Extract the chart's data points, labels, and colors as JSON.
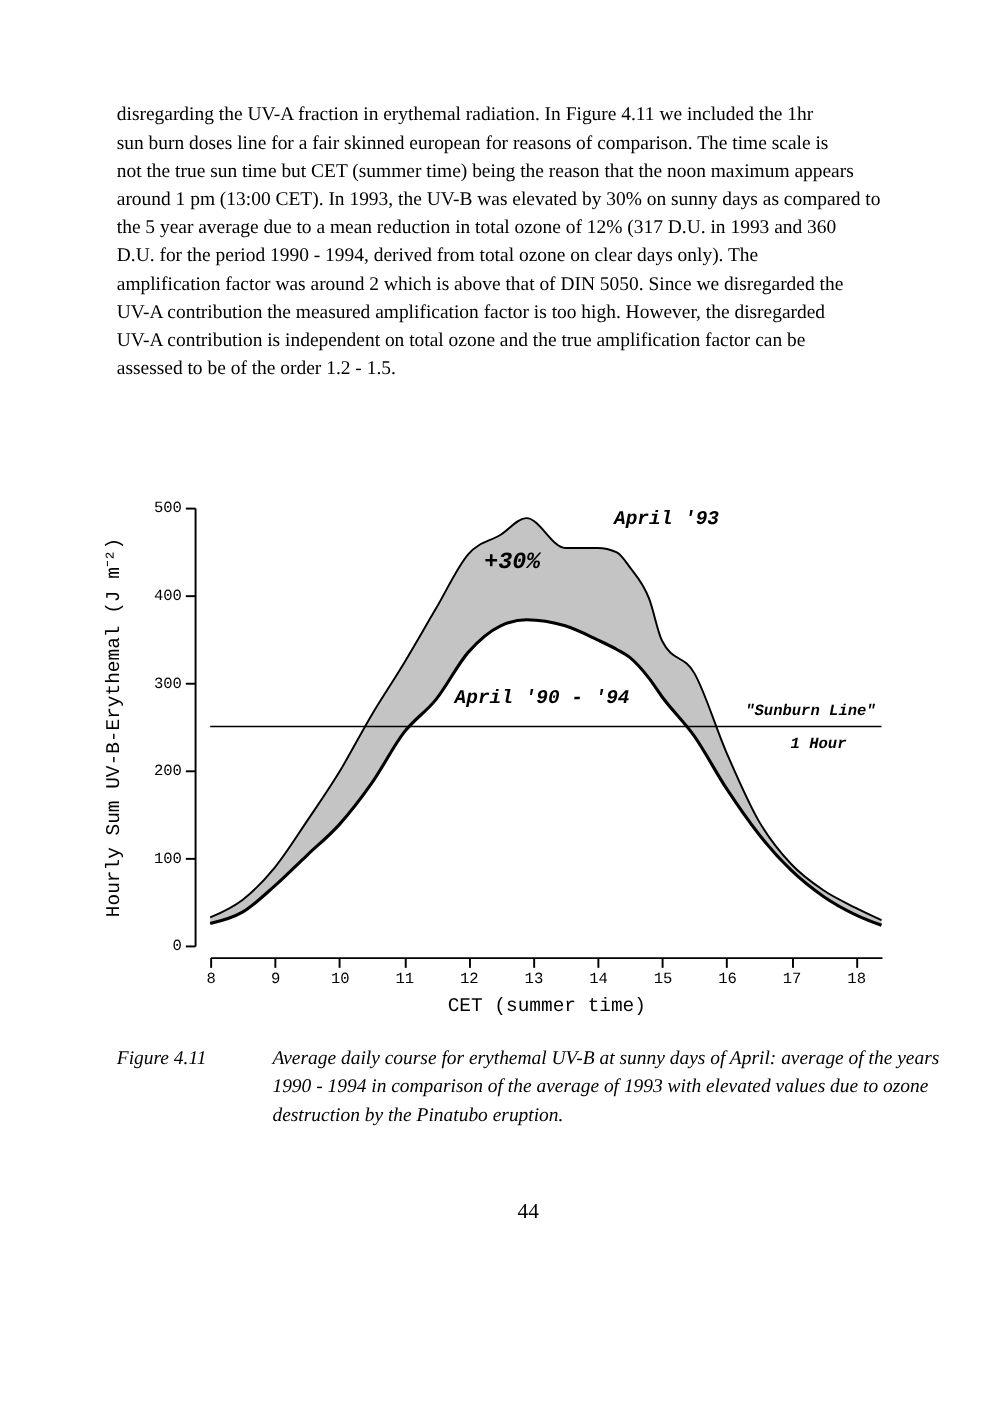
{
  "chart_data": {
    "type": "line",
    "xlabel": "CET (summer time)",
    "ylabel": "Hourly Sum UV-B-Erythemal (J m⁻²)",
    "x": [
      8,
      8.5,
      9,
      9.5,
      10,
      10.5,
      11,
      11.5,
      12,
      12.5,
      12.9,
      13.5,
      14,
      14.3,
      14.5,
      14.8,
      15,
      15.5,
      16,
      16.5,
      17,
      17.5,
      18,
      18.4
    ],
    "series": [
      {
        "name": "April '93",
        "color": "#000000",
        "values": [
          32,
          52,
          89,
          142,
          198,
          263,
          322,
          385,
          447,
          469,
          488,
          454,
          454,
          449,
          432,
          396,
          348,
          311,
          220,
          142,
          93,
          63,
          43,
          29
        ],
        "lower": [
          25,
          38,
          68,
          103,
          138,
          185,
          243,
          281,
          335,
          365,
          372,
          365,
          349,
          338,
          329,
          305,
          284,
          239,
          179,
          127,
          86,
          56,
          35,
          23
        ],
        "upper": [
          32,
          52,
          89,
          142,
          198,
          263,
          322,
          385,
          447,
          469,
          488,
          454,
          454,
          449,
          432,
          396,
          348,
          311,
          220,
          142,
          93,
          63,
          43,
          29
        ]
      },
      {
        "name": "April '90 - '94",
        "color": "#000000",
        "values": [
          25,
          38,
          68,
          103,
          138,
          185,
          243,
          281,
          335,
          365,
          372,
          365,
          349,
          338,
          329,
          305,
          284,
          239,
          179,
          127,
          86,
          56,
          35,
          23
        ]
      }
    ],
    "xlim": [
      8,
      18.4
    ],
    "xticks": [
      8,
      9,
      10,
      11,
      12,
      13,
      14,
      15,
      16,
      17,
      18
    ],
    "ylim": [
      0,
      500
    ],
    "yticks": [
      0,
      100,
      200,
      300,
      400,
      500
    ],
    "ref_lines": [
      {
        "axis": "y",
        "value": 250,
        "label": "\"Sunburn Line\"\n1 Hour",
        "color": "#000000"
      }
    ],
    "annotations": [
      "disregarding the UV-A fraction in erythemal radiation. In Figure 4.11 we included the 1hr sun burn doses line for a fair skinned european for reasons of comparison. The time scale is not the true sun time but CET (summer time) being the reason that the noon maximum appears around 1 pm (13:00 CET). In 1993, the UV-B was elevated by 30% on sunny days as compared to the 5 year average due to a mean reduction in total ozone of 12% (317 D.U. in 1993 and 360 D.U. for the period 1990 - 1994, derived from total ozone on clear days only). The amplification factor was around 2 which is above that of DIN 5050. Since we disregarded the UV-A contribution the measured amplification factor is too high. However, the disregarded UV-A contribution is independent on total ozone and the true amplification factor can be assessed to be of the order 1.2 - 1.5.",
      "+30%",
      "Figure 4.11",
      "Average daily course for erythemal UV-B at sunny days of April: average of the years 1990 - 1994 in comparison of the average of 1993 with elevated values due to ozone destruction by the Pinatubo eruption.",
      "44"
    ],
    "marker": "none",
    "line_style": "solid"
  }
}
